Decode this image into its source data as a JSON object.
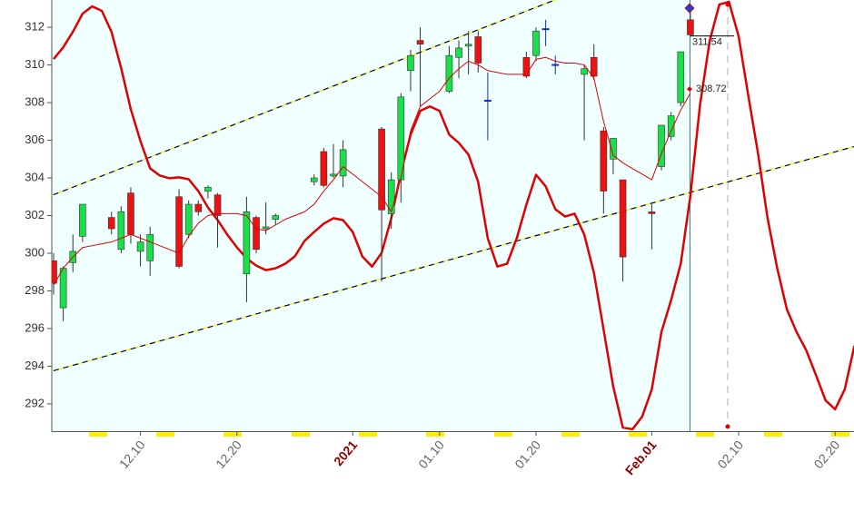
{
  "chart_data": {
    "type": "candlestick",
    "categories": [
      null,
      null,
      null,
      null,
      null,
      null,
      null,
      null,
      null,
      "12.10",
      null,
      null,
      null,
      null,
      null,
      null,
      null,
      null,
      null,
      "12.20",
      null,
      null,
      null,
      null,
      null,
      null,
      null,
      null,
      null,
      null,
      null,
      "2021",
      null,
      null,
      null,
      null,
      null,
      null,
      null,
      null,
      "01.10",
      null,
      null,
      null,
      null,
      null,
      null,
      null,
      null,
      null,
      "01.20",
      null,
      null,
      null,
      null,
      null,
      null,
      null,
      null,
      null,
      null,
      null,
      "Feb.01",
      null,
      null,
      null,
      null,
      null,
      null,
      null,
      null,
      "02.10",
      null,
      null,
      null,
      null,
      null,
      null,
      null,
      null,
      null,
      "02.20",
      null,
      null
    ],
    "x_label_emphasis": [
      31,
      62
    ],
    "open": [
      299.6,
      297.1,
      299.5,
      300.9,
      null,
      null,
      301.9,
      300.2,
      303.2,
      300.1,
      299.6,
      null,
      null,
      303.0,
      301.0,
      302.6,
      303.3,
      303.1,
      null,
      null,
      298.9,
      301.9,
      301.3,
      301.8,
      null,
      null,
      null,
      303.8,
      305.4,
      304.1,
      304.1,
      null,
      null,
      null,
      306.6,
      302.1,
      303.9,
      309.7,
      311.3,
      null,
      null,
      308.6,
      310.4,
      311.0,
      311.5,
      308.1,
      null,
      null,
      null,
      310.4,
      310.5,
      311.9,
      310.0,
      null,
      null,
      309.5,
      310.4,
      306.5,
      305.0,
      303.9,
      null,
      null,
      302.2,
      304.6,
      306.2,
      308.0,
      312.4,
      null,
      null,
      null,
      null,
      null,
      null,
      null,
      null,
      null,
      null,
      null,
      null,
      null,
      null,
      null,
      null,
      null
    ],
    "high": [
      300.0,
      299.3,
      301.0,
      302.6,
      null,
      null,
      302.2,
      302.5,
      303.5,
      301.0,
      301.4,
      null,
      null,
      303.4,
      302.8,
      302.8,
      303.6,
      303.2,
      null,
      null,
      303.0,
      302.0,
      302.7,
      302.1,
      null,
      null,
      null,
      304.2,
      305.6,
      305.8,
      306.0,
      null,
      null,
      null,
      306.7,
      304.3,
      308.5,
      310.8,
      312.0,
      null,
      null,
      311.0,
      311.3,
      311.8,
      311.8,
      309.6,
      null,
      null,
      null,
      310.7,
      312.0,
      312.4,
      310.5,
      null,
      null,
      310.0,
      311.1,
      306.7,
      306.1,
      303.9,
      null,
      null,
      302.6,
      306.8,
      307.5,
      310.7,
      312.9,
      null,
      null,
      null,
      null,
      null,
      null,
      null,
      null,
      null,
      null,
      null,
      null,
      null,
      null,
      null,
      null,
      null
    ],
    "low": [
      297.8,
      296.4,
      299.0,
      300.6,
      null,
      null,
      301.0,
      300.0,
      300.5,
      299.3,
      298.8,
      null,
      null,
      299.2,
      300.8,
      302.0,
      302.9,
      300.3,
      null,
      null,
      297.4,
      300.0,
      301.0,
      301.5,
      null,
      null,
      null,
      303.6,
      303.5,
      304.0,
      303.5,
      null,
      null,
      null,
      298.5,
      301.3,
      302.7,
      308.6,
      307.8,
      null,
      null,
      308.5,
      309.3,
      309.5,
      309.6,
      306.0,
      null,
      null,
      null,
      309.3,
      310.2,
      311.0,
      309.5,
      null,
      null,
      306.0,
      309.2,
      302.1,
      304.2,
      298.5,
      null,
      null,
      300.2,
      304.4,
      306.0,
      307.8,
      311.5,
      null,
      null,
      null,
      null,
      null,
      null,
      null,
      null,
      null,
      null,
      null,
      null,
      null,
      null,
      null,
      null,
      null
    ],
    "close": [
      298.4,
      299.2,
      300.1,
      302.6,
      null,
      null,
      301.3,
      302.2,
      301.0,
      300.6,
      301.0,
      null,
      null,
      299.3,
      302.6,
      302.2,
      303.5,
      302.0,
      null,
      null,
      302.2,
      300.2,
      301.4,
      302.0,
      null,
      null,
      null,
      304.0,
      303.6,
      304.2,
      305.5,
      null,
      null,
      null,
      302.3,
      303.9,
      308.3,
      310.5,
      311.1,
      null,
      null,
      310.5,
      310.9,
      311.1,
      310.1,
      308.1,
      null,
      null,
      null,
      309.4,
      311.8,
      311.9,
      310.0,
      null,
      null,
      309.8,
      309.4,
      303.3,
      306.1,
      299.8,
      null,
      null,
      302.1,
      306.8,
      307.3,
      310.7,
      311.6,
      null,
      null,
      null,
      null,
      null,
      null,
      null,
      null,
      null,
      null,
      null,
      null,
      null,
      null,
      null,
      null,
      null
    ],
    "up_color": "#18e048",
    "down_color": "#ee1111",
    "flat_color": "#1030c0",
    "series": [
      {
        "color": "#e00000",
        "width": 1,
        "values": [
          298.3,
          299.2,
          299.8,
          300.3,
          300.4,
          300.5,
          300.6,
          300.8,
          301.0,
          300.8,
          300.6,
          300.4,
          300.2,
          300.0,
          300.9,
          301.6,
          302.0,
          302.1,
          302.1,
          302.1,
          302.0,
          301.3,
          301.2,
          301.5,
          301.8,
          302.0,
          302.2,
          302.6,
          303.3,
          303.9,
          304.6,
          304.2,
          303.8,
          303.4,
          303.0,
          302.2,
          304.0,
          306.5,
          307.8,
          308.2,
          308.6,
          309.3,
          309.8,
          310.2,
          310.0,
          309.7,
          309.6,
          309.5,
          309.5,
          309.5,
          310.3,
          310.4,
          310.2,
          310.1,
          310.1,
          310.0,
          309.3,
          307.0,
          305.2,
          304.8,
          304.5,
          304.2,
          303.9,
          305.3,
          306.5,
          307.6,
          308.5,
          null,
          null,
          null,
          null,
          null,
          null,
          null,
          null,
          null,
          null,
          null,
          null,
          null,
          null,
          null,
          null,
          null
        ]
      },
      {
        "color": "#e00000",
        "width": 2.5,
        "values": [
          310.31,
          310.94,
          311.76,
          312.72,
          313.11,
          312.87,
          311.76,
          309.83,
          307.65,
          305.96,
          304.51,
          304.13,
          303.98,
          304.03,
          303.93,
          303.3,
          302.43,
          301.76,
          300.99,
          300.31,
          299.73,
          299.34,
          299.1,
          299.2,
          299.44,
          299.83,
          300.65,
          301.13,
          301.57,
          301.86,
          301.76,
          301.13,
          299.83,
          299.29,
          300.02,
          301.86,
          304.27,
          306.3,
          307.56,
          307.8,
          307.56,
          306.3,
          305.86,
          305.24,
          303.79,
          300.79,
          299.29,
          299.44,
          300.79,
          302.58,
          304.17,
          303.55,
          302.34,
          301.95,
          302.1,
          300.99,
          298.96,
          295.96,
          292.92,
          290.74,
          290.65,
          291.32,
          292.77,
          295.82,
          297.51,
          299.44,
          303.06,
          307.89,
          311.28,
          313.21,
          313.35,
          311.52,
          308.38,
          305.33,
          301.86,
          299.2,
          297.02,
          295.82,
          294.85,
          293.55,
          292.19,
          291.71,
          292.77,
          295.09
        ]
      }
    ],
    "trendlines": [
      {
        "x": [
          0,
          51
        ],
        "values": [
          303.11,
          313.26
        ]
      },
      {
        "x": [
          0,
          83
        ],
        "values": [
          293.76,
          305.67
        ]
      }
    ],
    "price_labels": [
      311.54,
      308.72
    ],
    "ylim": [
      290.55,
      313.45
    ],
    "yticks": [
      292,
      294,
      296,
      298,
      300,
      302,
      304,
      306,
      308,
      310,
      312
    ]
  }
}
